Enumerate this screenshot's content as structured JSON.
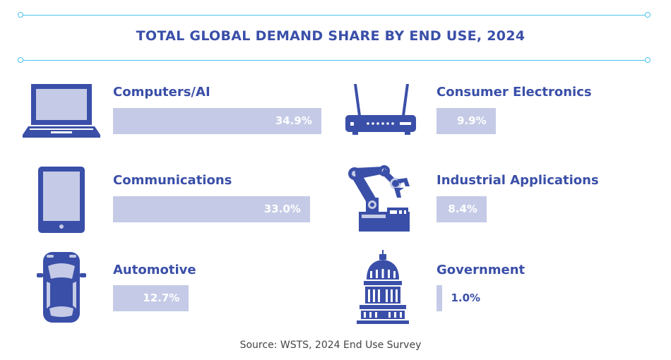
{
  "colors": {
    "accent": "#3a4fa8",
    "bar": "#c5cbe6",
    "rule": "#4cc3ee"
  },
  "chart_data": {
    "type": "bar",
    "title": "TOTAL GLOBAL DEMAND SHARE BY END USE, 2024",
    "categories": [
      "Computers/AI",
      "Consumer Electronics",
      "Communications",
      "Industrial Applications",
      "Automotive",
      "Government"
    ],
    "values": [
      34.9,
      9.9,
      33.0,
      8.4,
      12.7,
      1.0
    ],
    "value_labels": [
      "34.9%",
      "9.9%",
      "33.0%",
      "8.4%",
      "12.7%",
      "1.0%"
    ],
    "icons": [
      "laptop-icon",
      "router-icon",
      "tablet-icon",
      "robot-arm-icon",
      "car-icon",
      "capitol-icon"
    ],
    "unit": "%",
    "xlim": [
      0,
      35
    ],
    "source": "Source: WSTS, 2024 End Use Survey"
  }
}
